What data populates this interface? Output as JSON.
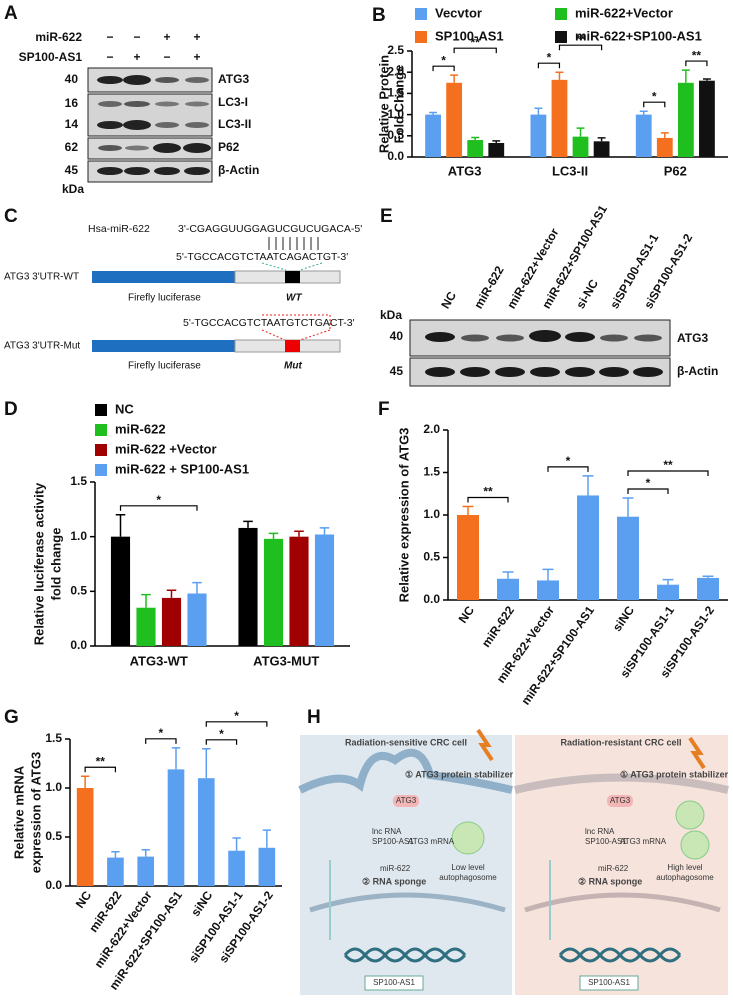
{
  "panel_a": {
    "letter": "A",
    "rows": [
      {
        "label": "miR-622",
        "signs": [
          "−",
          "−",
          "+",
          "+"
        ]
      },
      {
        "label": "SP100-AS1",
        "signs": [
          "−",
          "+",
          "−",
          "+"
        ]
      }
    ],
    "markers": [
      "40",
      "16",
      "14",
      "62",
      "45"
    ],
    "unit": "kDa",
    "proteins": [
      "ATG3",
      "LC3-I",
      "LC3-II",
      "P62",
      "β-Actin"
    ]
  },
  "panel_c": {
    "letter": "C",
    "mirna_label": "Hsa-miR-622",
    "mirna_seq": "3'-CGAGGUUGGAGUCGUCUGACA-5'",
    "wt_seq": "5'-TGCCACGTCTAATCAGACTGT-3'",
    "wt_construct": "ATG3 3'UTR-WT",
    "reporters": [
      "Firefly luciferase",
      "Firefly luciferase"
    ],
    "wt_site": "WT",
    "mut_seq": "5'-TGCCACGTCTAATGTCTGACT-3'",
    "mut_construct": "ATG3 3'UTR-Mut",
    "mut_site": "Mut"
  },
  "panel_e": {
    "letter": "E",
    "lanes": [
      "NC",
      "miR-622",
      "miR-622+Vector",
      "miR-622+SP100-AS1",
      "si-NC",
      "siSP100-AS1-1",
      "siSP100-AS1-2"
    ],
    "unit": "kDa",
    "markers": [
      "40",
      "45"
    ],
    "proteins": [
      "ATG3",
      "β-Actin"
    ]
  },
  "panel_h": {
    "letter": "H",
    "left_title": "Radiation-sensitive CRC cell",
    "right_title": "Radiation-resistant CRC cell",
    "stabilizer": [
      "① ATG3 protein stabilizer",
      "① ATG3 protein stabilizer"
    ],
    "protein": [
      "ATG3",
      "ATG3"
    ],
    "lncrna": [
      "lnc RNA",
      "SP100-AS1",
      "lnc RNA",
      "SP100-AS1"
    ],
    "mrna": [
      "ATG3 mRNA",
      "ATG3 mRNA"
    ],
    "mirna": [
      "miR-622",
      "miR-622"
    ],
    "sponge": [
      "② RNA sponge",
      "② RNA sponge"
    ],
    "autophagy_left": [
      "Low level",
      "autophagosome"
    ],
    "autophagy_right": [
      "High level",
      "autophagosome"
    ],
    "gene": [
      "SP100-AS1",
      "SP100-AS1"
    ]
  },
  "chart_data": [
    {
      "type": "bar",
      "panel": "B",
      "ylabel": [
        "Relative Protein",
        "Fold Change"
      ],
      "categories": [
        "ATG3",
        "LC3-II",
        "P62"
      ],
      "series": [
        {
          "name": "Vecvtor",
          "color": "#5b9ff0",
          "values": [
            1.0,
            1.0,
            1.0
          ],
          "errors": [
            0.05,
            0.15,
            0.08
          ]
        },
        {
          "name": "SP100-AS1",
          "color": "#f4701e",
          "values": [
            1.75,
            1.82,
            0.45
          ],
          "errors": [
            0.18,
            0.18,
            0.12
          ]
        },
        {
          "name": "miR-622+Vector",
          "color": "#1fbf1f",
          "values": [
            0.4,
            0.48,
            1.75
          ],
          "errors": [
            0.06,
            0.2,
            0.3
          ]
        },
        {
          "name": "miR-622+SP100-AS1",
          "color": "#111111",
          "values": [
            0.33,
            0.37,
            1.8
          ],
          "errors": [
            0.05,
            0.08,
            0.04
          ]
        }
      ],
      "ylim": [
        0,
        2.5
      ],
      "yticks": [
        {
          "value": 0,
          "label": "0.0"
        },
        0.5,
        {
          "value": 1,
          "label": "1.0"
        },
        1.5,
        {
          "value": 2,
          "label": "2.0"
        },
        2.5
      ],
      "significance": [
        {
          "label": "*",
          "category": "ATG3",
          "from": "Vecvtor",
          "to": "SP100-AS1"
        },
        {
          "label": "**",
          "category": "ATG3",
          "from": "SP100-AS1",
          "to": "miR-622+SP100-AS1"
        },
        {
          "label": "*",
          "category": "LC3-II",
          "from": "Vecvtor",
          "to": "SP100-AS1"
        },
        {
          "label": "**",
          "category": "LC3-II",
          "from": "SP100-AS1",
          "to": "miR-622+SP100-AS1"
        },
        {
          "label": "*",
          "category": "P62",
          "from": "Vecvtor",
          "to": "SP100-AS1"
        },
        {
          "label": "**",
          "category": "P62",
          "from": "miR-622+Vector",
          "to": "miR-622+SP100-AS1"
        }
      ]
    },
    {
      "type": "bar",
      "panel": "D",
      "ylabel": [
        "Relative luciferase activity",
        "fold change"
      ],
      "categories": [
        "ATG3-WT",
        "ATG3-MUT"
      ],
      "series": [
        {
          "name": "NC",
          "color": "#000000",
          "values": [
            1.0,
            1.08
          ],
          "errors": [
            0.2,
            0.06
          ]
        },
        {
          "name": "miR-622",
          "color": "#1fbf1f",
          "values": [
            0.35,
            0.98
          ],
          "errors": [
            0.12,
            0.05
          ]
        },
        {
          "name": "miR-622 +Vector",
          "color": "#a00000",
          "values": [
            0.44,
            1.0
          ],
          "errors": [
            0.07,
            0.05
          ]
        },
        {
          "name": "miR-622 + SP100-AS1",
          "color": "#5b9ff0",
          "values": [
            0.48,
            1.02
          ],
          "errors": [
            0.1,
            0.06
          ]
        }
      ],
      "ylim": [
        0,
        1.5
      ],
      "yticks": [
        {
          "value": 0,
          "label": "0.0"
        },
        0.5,
        {
          "value": 1,
          "label": "1.0"
        },
        1.5
      ],
      "significance": [
        {
          "label": "*",
          "category": "ATG3-WT",
          "from": "NC",
          "to": "miR-622 + SP100-AS1"
        }
      ]
    },
    {
      "type": "bar",
      "panel": "F",
      "ylabel": "Relative expression of ATG3",
      "categories": [
        "NC",
        "miR-622",
        "miR-622+Vector",
        "miR-622+SP100-AS1",
        "siNC",
        "siSP100-AS1-1",
        "siSP100-AS1-2"
      ],
      "values": [
        1.0,
        0.25,
        0.23,
        1.23,
        0.98,
        0.18,
        0.26
      ],
      "errors": [
        0.1,
        0.08,
        0.13,
        0.23,
        0.22,
        0.06,
        0.02
      ],
      "colors": [
        "#f4701e",
        "#5b9ff0",
        "#5b9ff0",
        "#5b9ff0",
        "#5b9ff0",
        "#5b9ff0",
        "#5b9ff0"
      ],
      "ylim": [
        0,
        2
      ],
      "yticks": [
        {
          "value": 0,
          "label": "0.0"
        },
        0.5,
        {
          "value": 1,
          "label": "1.0"
        },
        1.5,
        {
          "value": 2,
          "label": "2.0"
        }
      ],
      "significance": [
        {
          "label": "**",
          "from": "NC",
          "to": "miR-622"
        },
        {
          "label": "*",
          "from": "miR-622+Vector",
          "to": "miR-622+SP100-AS1"
        },
        {
          "label": "*",
          "from": "siNC",
          "to": "siSP100-AS1-1"
        },
        {
          "label": "**",
          "from": "siNC",
          "to": "siSP100-AS1-2"
        }
      ]
    },
    {
      "type": "bar",
      "panel": "G",
      "ylabel": [
        "Relative mRNA",
        "expression of ATG3"
      ],
      "categories": [
        "NC",
        "miR-622",
        "miR-622+Vector",
        "miR-622+SP100-AS1",
        "siNC",
        "siSP100-AS1-1",
        "siSP100-AS1-2"
      ],
      "values": [
        1.0,
        0.29,
        0.3,
        1.19,
        1.1,
        0.36,
        0.39
      ],
      "errors": [
        0.12,
        0.06,
        0.07,
        0.22,
        0.3,
        0.13,
        0.18
      ],
      "colors": [
        "#f4701e",
        "#5b9ff0",
        "#5b9ff0",
        "#5b9ff0",
        "#5b9ff0",
        "#5b9ff0",
        "#5b9ff0"
      ],
      "ylim": [
        0,
        1.5
      ],
      "yticks": [
        {
          "value": 0,
          "label": "0.0"
        },
        0.5,
        {
          "value": 1,
          "label": "1.0"
        },
        1.5
      ],
      "significance": [
        {
          "label": "**",
          "from": "NC",
          "to": "miR-622"
        },
        {
          "label": "*",
          "from": "miR-622+Vector",
          "to": "miR-622+SP100-AS1"
        },
        {
          "label": "*",
          "from": "siNC",
          "to": "siSP100-AS1-1"
        },
        {
          "label": "*",
          "from": "siNC",
          "to": "siSP100-AS1-2"
        }
      ]
    }
  ]
}
